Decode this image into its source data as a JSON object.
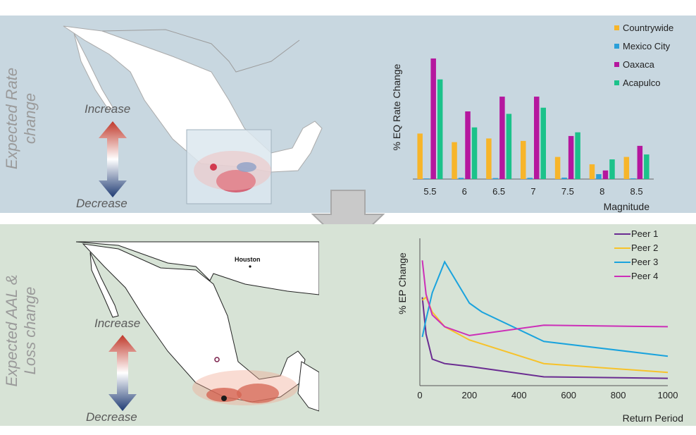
{
  "top_panel": {
    "side_title_line1": "Expected Rate",
    "side_title_line2": "change",
    "increase_label": "Increase",
    "decrease_label": "Decrease"
  },
  "bottom_panel": {
    "side_title_line1": "Expected AAL &",
    "side_title_line2": "Loss  change",
    "increase_label": "Increase",
    "decrease_label": "Decrease",
    "city_label": "Houston"
  },
  "colors": {
    "countrywide": "#f7b52a",
    "mexico_city": "#2b9fd8",
    "oaxaca": "#b5179e",
    "acapulco": "#1cc28a",
    "peer1": "#6a2c91",
    "peer2": "#f7c22a",
    "peer3": "#1aa3dd",
    "peer4": "#cc2fb8",
    "arrow_red": "#c0392b",
    "arrow_blue": "#1f3b73"
  },
  "chart_data": [
    {
      "type": "bar",
      "title": "",
      "xlabel": "Magnitude",
      "ylabel": "%  EQ Rate Change",
      "categories": [
        "5.5",
        "6",
        "6.5",
        "7",
        "7.5",
        "8",
        "8.5"
      ],
      "series": [
        {
          "name": "Countrywide",
          "values": [
            37,
            30,
            33,
            31,
            18,
            12,
            18
          ]
        },
        {
          "name": "Mexico City",
          "values": [
            0.5,
            1,
            0.8,
            1,
            1.2,
            4,
            0.6
          ]
        },
        {
          "name": "Oaxaca",
          "values": [
            98,
            55,
            67,
            67,
            35,
            7,
            27
          ]
        },
        {
          "name": "Acapulco",
          "values": [
            81,
            42,
            53,
            58,
            38,
            16,
            20
          ]
        }
      ],
      "ylim": [
        0,
        110
      ],
      "legend": "top-right"
    },
    {
      "type": "line",
      "title": "",
      "xlabel": "Return Period",
      "ylabel": "% EP Change",
      "xticks": [
        "0",
        "200",
        "400",
        "600",
        "800",
        "1000"
      ],
      "xlim": [
        0,
        1000
      ],
      "ylim": [
        0,
        100
      ],
      "series": [
        {
          "name": "Peer 1",
          "x": [
            10,
            25,
            50,
            100,
            200,
            500,
            1000
          ],
          "y": [
            60,
            35,
            18,
            15,
            13,
            6,
            5
          ]
        },
        {
          "name": "Peer 2",
          "x": [
            10,
            25,
            50,
            100,
            200,
            500,
            1000
          ],
          "y": [
            58,
            60,
            50,
            40,
            31,
            15,
            9
          ]
        },
        {
          "name": "Peer 3",
          "x": [
            10,
            25,
            50,
            100,
            200,
            250,
            500,
            1000
          ],
          "y": [
            33,
            45,
            63,
            84,
            56,
            50,
            30,
            20
          ]
        },
        {
          "name": "Peer 4",
          "x": [
            10,
            25,
            50,
            100,
            200,
            500,
            1000
          ],
          "y": [
            85,
            62,
            48,
            40,
            34,
            41,
            40
          ]
        }
      ],
      "legend": "top-right"
    }
  ]
}
